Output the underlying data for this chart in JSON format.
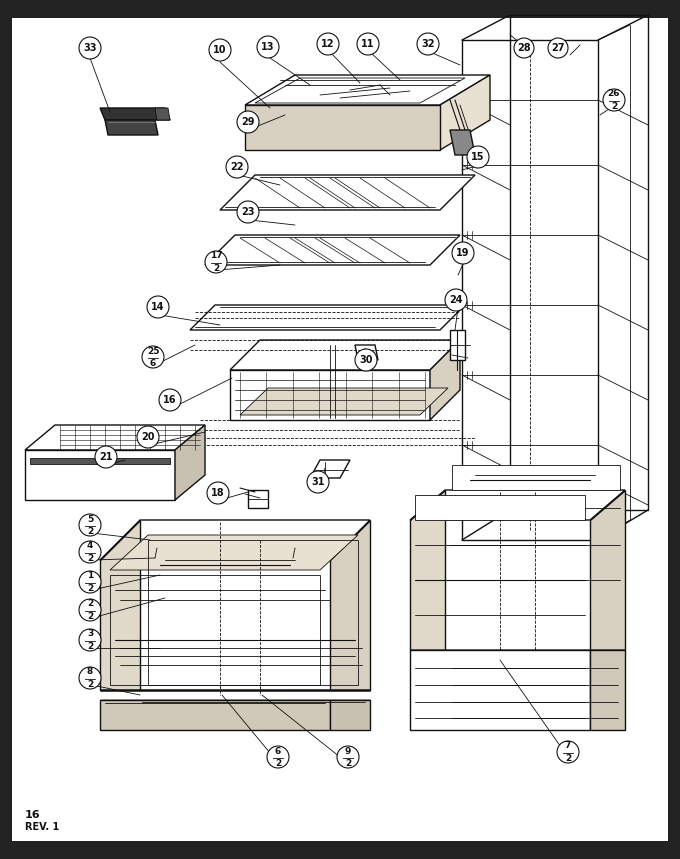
{
  "bg_color": "#ffffff",
  "border_color": "#111111",
  "line_color": "#111111",
  "page_label_line1": "16",
  "page_label_line2": "REV. 1",
  "figsize": [
    6.8,
    8.59
  ],
  "dpi": 100
}
